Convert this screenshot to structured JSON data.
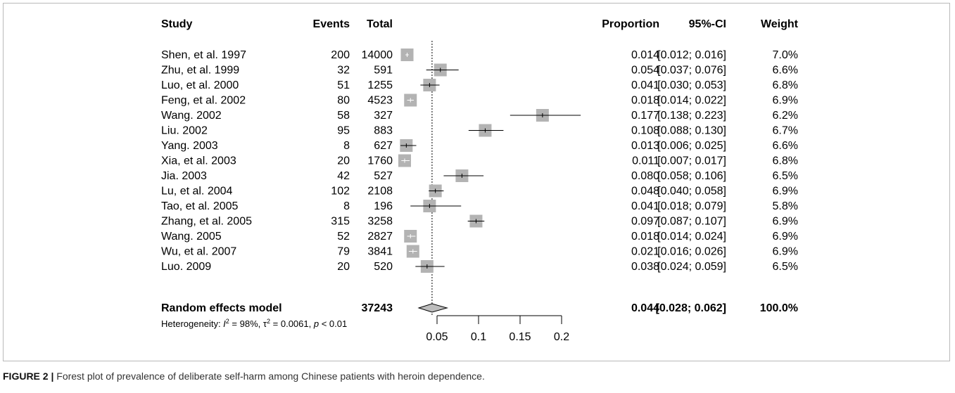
{
  "chart_data": {
    "type": "forest",
    "headers": {
      "study": "Study",
      "events": "Events",
      "total": "Total",
      "proportion": "Proportion",
      "ci": "95%-CI",
      "weight": "Weight"
    },
    "studies": [
      {
        "study": "Shen, et al. 1997",
        "events": "200",
        "total": "14000",
        "proportion": "0.014",
        "ci_text": "[0.012; 0.016]",
        "weight": "7.0%",
        "est": 0.014,
        "lo": 0.012,
        "hi": 0.016
      },
      {
        "study": "Zhu, et al. 1999",
        "events": "32",
        "total": "591",
        "proportion": "0.054",
        "ci_text": "[0.037; 0.076]",
        "weight": "6.6%",
        "est": 0.054,
        "lo": 0.037,
        "hi": 0.076
      },
      {
        "study": "Luo, et al. 2000",
        "events": "51",
        "total": "1255",
        "proportion": "0.041",
        "ci_text": "[0.030; 0.053]",
        "weight": "6.8%",
        "est": 0.041,
        "lo": 0.03,
        "hi": 0.053
      },
      {
        "study": "Feng, et al. 2002",
        "events": "80",
        "total": "4523",
        "proportion": "0.018",
        "ci_text": "[0.014; 0.022]",
        "weight": "6.9%",
        "est": 0.018,
        "lo": 0.014,
        "hi": 0.022
      },
      {
        "study": "Wang. 2002",
        "events": "58",
        "total": "327",
        "proportion": "0.177",
        "ci_text": "[0.138; 0.223]",
        "weight": "6.2%",
        "est": 0.177,
        "lo": 0.138,
        "hi": 0.223
      },
      {
        "study": "Liu. 2002",
        "events": "95",
        "total": "883",
        "proportion": "0.108",
        "ci_text": "[0.088; 0.130]",
        "weight": "6.7%",
        "est": 0.108,
        "lo": 0.088,
        "hi": 0.13
      },
      {
        "study": "Yang. 2003",
        "events": "8",
        "total": "627",
        "proportion": "0.013",
        "ci_text": "[0.006; 0.025]",
        "weight": "6.6%",
        "est": 0.013,
        "lo": 0.006,
        "hi": 0.025
      },
      {
        "study": "Xia, et al. 2003",
        "events": "20",
        "total": "1760",
        "proportion": "0.011",
        "ci_text": "[0.007; 0.017]",
        "weight": "6.8%",
        "est": 0.011,
        "lo": 0.007,
        "hi": 0.017
      },
      {
        "study": "Jia. 2003",
        "events": "42",
        "total": "527",
        "proportion": "0.080",
        "ci_text": "[0.058; 0.106]",
        "weight": "6.5%",
        "est": 0.08,
        "lo": 0.058,
        "hi": 0.106
      },
      {
        "study": "Lu, et al. 2004",
        "events": "102",
        "total": "2108",
        "proportion": "0.048",
        "ci_text": "[0.040; 0.058]",
        "weight": "6.9%",
        "est": 0.048,
        "lo": 0.04,
        "hi": 0.058
      },
      {
        "study": "Tao, et al. 2005",
        "events": "8",
        "total": "196",
        "proportion": "0.041",
        "ci_text": "[0.018; 0.079]",
        "weight": "5.8%",
        "est": 0.041,
        "lo": 0.018,
        "hi": 0.079
      },
      {
        "study": "Zhang, et al. 2005",
        "events": "315",
        "total": "3258",
        "proportion": "0.097",
        "ci_text": "[0.087; 0.107]",
        "weight": "6.9%",
        "est": 0.097,
        "lo": 0.087,
        "hi": 0.107
      },
      {
        "study": "Wang. 2005",
        "events": "52",
        "total": "2827",
        "proportion": "0.018",
        "ci_text": "[0.014; 0.024]",
        "weight": "6.9%",
        "est": 0.018,
        "lo": 0.014,
        "hi": 0.024
      },
      {
        "study": "Wu, et al. 2007",
        "events": "79",
        "total": "3841",
        "proportion": "0.021",
        "ci_text": "[0.016; 0.026]",
        "weight": "6.9%",
        "est": 0.021,
        "lo": 0.016,
        "hi": 0.026
      },
      {
        "study": "Luo. 2009",
        "events": "20",
        "total": "520",
        "proportion": "0.038",
        "ci_text": "[0.024; 0.059]",
        "weight": "6.5%",
        "est": 0.038,
        "lo": 0.024,
        "hi": 0.059
      }
    ],
    "summary": {
      "label": "Random effects model",
      "total": "37243",
      "proportion": "0.044",
      "ci_text": "[0.028; 0.062]",
      "weight": "100.0%",
      "est": 0.044,
      "lo": 0.028,
      "hi": 0.062
    },
    "heterogeneity": {
      "prefix": "Heterogeneity: ",
      "i2_symbol": "I",
      "i2_value": " = 98%, ",
      "tau2_symbol": "τ",
      "tau2_value": " = 0.0061, ",
      "p_symbol": "p",
      "p_value": " < 0.01"
    },
    "x_axis": {
      "ticks": [
        0.05,
        0.1,
        0.15,
        0.2
      ],
      "tick_labels": [
        "0.05",
        "0.1",
        "0.15",
        "0.2"
      ],
      "xlim": [
        0.0,
        0.2
      ],
      "reference_line": 0.044
    },
    "colors": {
      "box": "#b3b3b3",
      "ci_line": "#000000",
      "ci_inside_box": "#ffffff",
      "diamond": "#bdbdbd",
      "reference_line": "#000000"
    }
  },
  "caption": {
    "label": "FIGURE 2 |",
    "text": " Forest plot of prevalence of deliberate self-harm among Chinese patients with heroin dependence."
  }
}
